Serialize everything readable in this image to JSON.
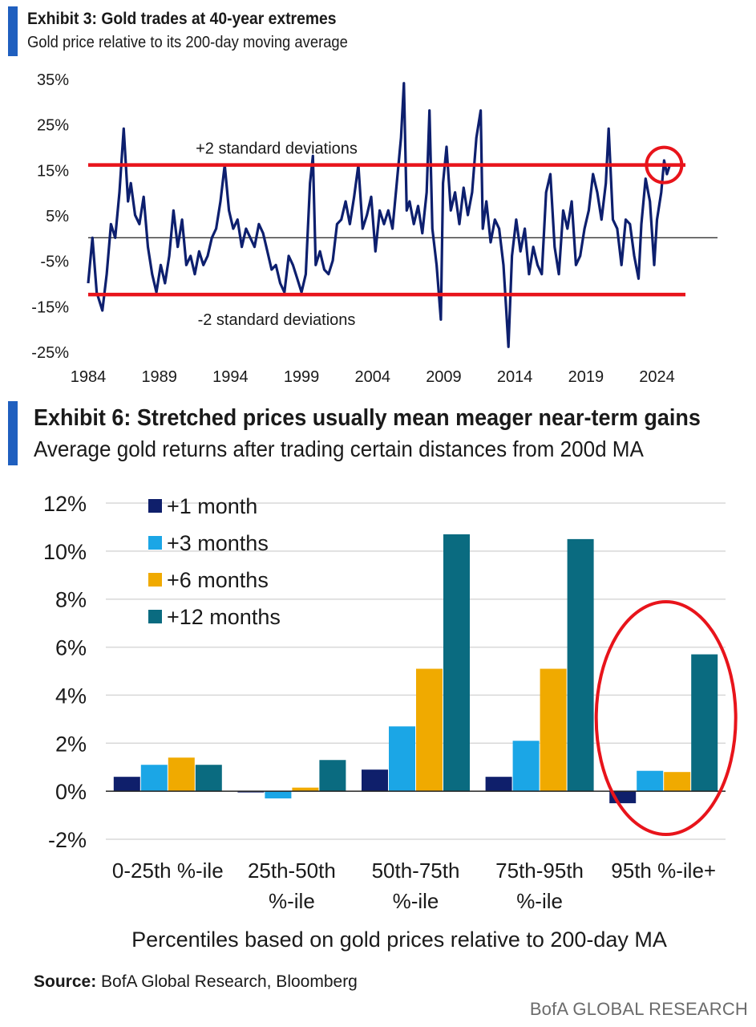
{
  "exhibit3": {
    "title": "Exhibit 3: Gold trades at 40-year extremes",
    "subtitle": "Gold price relative to its 200-day moving average",
    "chart_data": {
      "type": "line",
      "title": "Exhibit 3: Gold trades at 40-year extremes",
      "subtitle": "Gold price relative to its 200-day moving average",
      "x_ticks": [
        "1984",
        "1989",
        "1994",
        "1999",
        "2004",
        "2009",
        "2014",
        "2019",
        "2024"
      ],
      "y_ticks": [
        "35%",
        "25%",
        "15%",
        "5%",
        "-5%",
        "-15%",
        "-25%"
      ],
      "xlim": [
        1984,
        2026
      ],
      "ylim": [
        -25,
        35
      ],
      "line_color": "#0d1f6e",
      "zero_line": true,
      "reference_lines": [
        {
          "label": "+2 standard deviations",
          "value": 16,
          "color": "#e8141b"
        },
        {
          "label": "-2 standard deviations",
          "value": -12.5,
          "color": "#e8141b"
        }
      ],
      "highlight": {
        "x": 2024.5,
        "y": 16,
        "color": "#e8141b"
      },
      "series": [
        {
          "x": [
            1984.0,
            1984.3,
            1984.6,
            1985.0,
            1985.3,
            1985.6,
            1985.9,
            1986.2,
            1986.5,
            1986.8,
            1987.0,
            1987.3,
            1987.6,
            1987.9,
            1988.2,
            1988.5,
            1988.8,
            1989.1,
            1989.4,
            1989.7,
            1990.0,
            1990.3,
            1990.6,
            1990.9,
            1991.2,
            1991.5,
            1991.8,
            1992.1,
            1992.4,
            1992.7,
            1993.0,
            1993.3,
            1993.6,
            1993.9,
            1994.2,
            1994.5,
            1994.8,
            1995.1,
            1995.4,
            1995.7,
            1996.0,
            1996.3,
            1996.6,
            1996.9,
            1997.2,
            1997.5,
            1997.8,
            1998.1,
            1998.4,
            1998.7,
            1999.0,
            1999.3,
            1999.6,
            1999.8,
            2000.0,
            2000.3,
            2000.6,
            2000.9,
            2001.2,
            2001.5,
            2001.8,
            2002.1,
            2002.4,
            2002.7,
            2003.0,
            2003.3,
            2003.6,
            2003.9,
            2004.2,
            2004.5,
            2004.8,
            2005.1,
            2005.4,
            2005.7,
            2006.0,
            2006.2,
            2006.4,
            2006.6,
            2006.9,
            2007.2,
            2007.5,
            2007.8,
            2008.0,
            2008.2,
            2008.5,
            2008.8,
            2008.95,
            2009.2,
            2009.5,
            2009.8,
            2010.1,
            2010.4,
            2010.7,
            2011.0,
            2011.3,
            2011.6,
            2011.75,
            2012.0,
            2012.3,
            2012.6,
            2012.9,
            2013.2,
            2013.4,
            2013.55,
            2013.8,
            2014.1,
            2014.4,
            2014.7,
            2015.0,
            2015.3,
            2015.6,
            2015.9,
            2016.2,
            2016.5,
            2016.8,
            2017.1,
            2017.4,
            2017.7,
            2018.0,
            2018.3,
            2018.6,
            2018.9,
            2019.2,
            2019.5,
            2019.8,
            2020.1,
            2020.4,
            2020.6,
            2020.9,
            2021.2,
            2021.5,
            2021.8,
            2022.1,
            2022.4,
            2022.7,
            2022.9,
            2023.2,
            2023.5,
            2023.8,
            2024.0,
            2024.3,
            2024.5,
            2024.7,
            2024.9
          ],
          "y": [
            -10,
            0,
            -12,
            -16,
            -8,
            3,
            0,
            10,
            24,
            8,
            12,
            5,
            3,
            9,
            -2,
            -8,
            -12,
            -6,
            -10,
            -4,
            6,
            -2,
            4,
            -6,
            -4,
            -8,
            -3,
            -6,
            -4,
            0,
            2,
            8,
            16,
            6,
            2,
            4,
            -2,
            2,
            0,
            -2,
            3,
            1,
            -3,
            -7,
            -6,
            -10,
            -12,
            -4,
            -6,
            -9,
            -12,
            -8,
            12,
            18,
            -6,
            -3,
            -7,
            -8,
            -5,
            3,
            4,
            8,
            3,
            9,
            16,
            2,
            5,
            9,
            -3,
            6,
            3,
            6,
            2,
            12,
            22,
            34,
            6,
            8,
            3,
            7,
            1,
            10,
            28,
            2,
            -6,
            -18,
            12,
            20,
            6,
            10,
            3,
            11,
            5,
            10,
            22,
            28,
            2,
            8,
            -1,
            4,
            2,
            -6,
            -16,
            -24,
            -4,
            4,
            -3,
            2,
            -8,
            -2,
            -6,
            -8,
            10,
            14,
            -2,
            -8,
            6,
            2,
            8,
            -6,
            -4,
            2,
            6,
            14,
            10,
            4,
            12,
            24,
            4,
            2,
            -6,
            4,
            3,
            -4,
            -9,
            3,
            13,
            8,
            -6,
            4,
            10,
            17,
            14,
            16
          ]
        }
      ]
    }
  },
  "exhibit6": {
    "title": "Exhibit 6: Stretched prices usually mean meager near-term gains",
    "subtitle": "Average gold returns after trading certain distances from 200d MA",
    "chart_data": {
      "type": "bar",
      "title": "Exhibit 6: Stretched prices usually mean meager near-term gains",
      "subtitle": "Average gold returns after trading certain distances from 200d MA",
      "xlabel": "Percentiles based on gold prices relative to 200-day MA",
      "ylabel": "",
      "ylim": [
        -2,
        12
      ],
      "y_ticks": [
        "12%",
        "10%",
        "8%",
        "6%",
        "4%",
        "2%",
        "0%",
        "-2%"
      ],
      "legend_position": "top-left",
      "categories": [
        "0-25th %-ile",
        "25th-50th %-ile",
        "50th-75th %-ile",
        "75th-95th %-ile",
        "95th %-ile+"
      ],
      "category_lines": [
        [
          "0-25th %-ile"
        ],
        [
          "25th-50th",
          "%-ile"
        ],
        [
          "50th-75th",
          "%-ile"
        ],
        [
          "75th-95th",
          "%-ile"
        ],
        [
          "95th %-ile+"
        ]
      ],
      "series": [
        {
          "name": "+1 month",
          "color": "#0f1f6b",
          "values": [
            0.6,
            0.0,
            0.9,
            0.6,
            -0.5
          ]
        },
        {
          "name": "+3 months",
          "color": "#1ba6e6",
          "values": [
            1.1,
            -0.3,
            2.7,
            2.1,
            0.85
          ]
        },
        {
          "name": "+6 months",
          "color": "#f0aa00",
          "values": [
            1.4,
            0.15,
            5.1,
            5.1,
            0.8
          ]
        },
        {
          "name": "+12 months",
          "color": "#0a6b80",
          "values": [
            1.1,
            1.3,
            10.7,
            10.5,
            5.7
          ]
        }
      ],
      "highlight": {
        "category": "95th %-ile+",
        "color": "#e8141b"
      }
    }
  },
  "footer": {
    "source_label": "Source:",
    "source_text": " BofA Global Research, Bloomberg",
    "brand": "BofA GLOBAL RESEARCH"
  }
}
